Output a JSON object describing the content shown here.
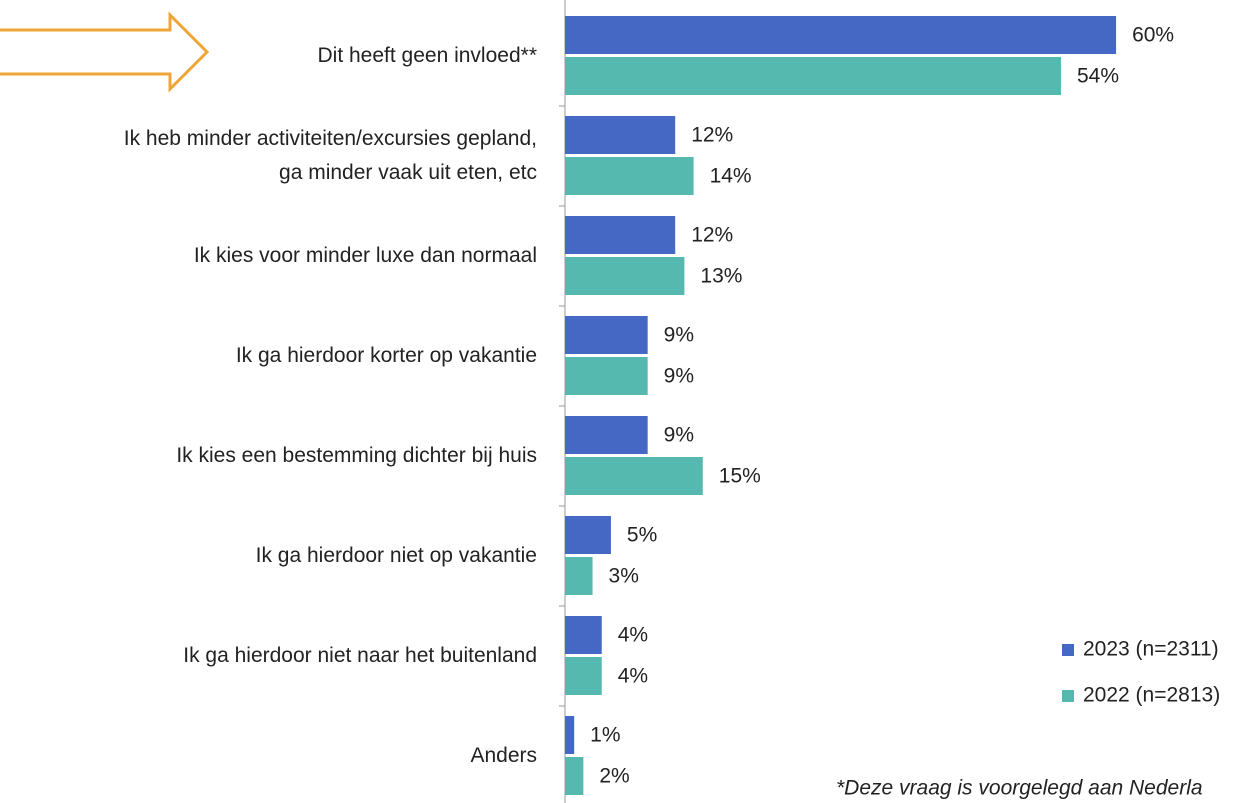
{
  "chart_data": {
    "type": "bar",
    "orientation": "horizontal",
    "categories": [
      "Dit heeft geen invloed**",
      "Ik heb minder activiteiten/excursies gepland,\nga minder vaak uit eten, etc",
      "Ik kies voor minder luxe dan normaal",
      "Ik ga hierdoor korter op vakantie",
      "Ik kies een bestemming dichter bij huis",
      "Ik ga hierdoor niet op vakantie",
      "Ik ga hierdoor niet naar het buitenland",
      "Anders"
    ],
    "series": [
      {
        "name": "2023 (n=2311)",
        "color": "#4568c4",
        "values": [
          60,
          12,
          12,
          9,
          9,
          5,
          4,
          1
        ],
        "value_labels": [
          "60%",
          "12%",
          "12%",
          "9%",
          "9%",
          "5%",
          "4%",
          "1%"
        ]
      },
      {
        "name": "2022 (n=2813)",
        "color": "#56b9b0",
        "values": [
          54,
          14,
          13,
          9,
          15,
          3,
          4,
          2
        ],
        "value_labels": [
          "54%",
          "14%",
          "13%",
          "9%",
          "15%",
          "3%",
          "4%",
          "2%"
        ]
      }
    ],
    "xlim": [
      0,
      65
    ],
    "legend": "lower right",
    "annotation": "*Deze vraag is voorgelegd aan Nederla"
  }
}
